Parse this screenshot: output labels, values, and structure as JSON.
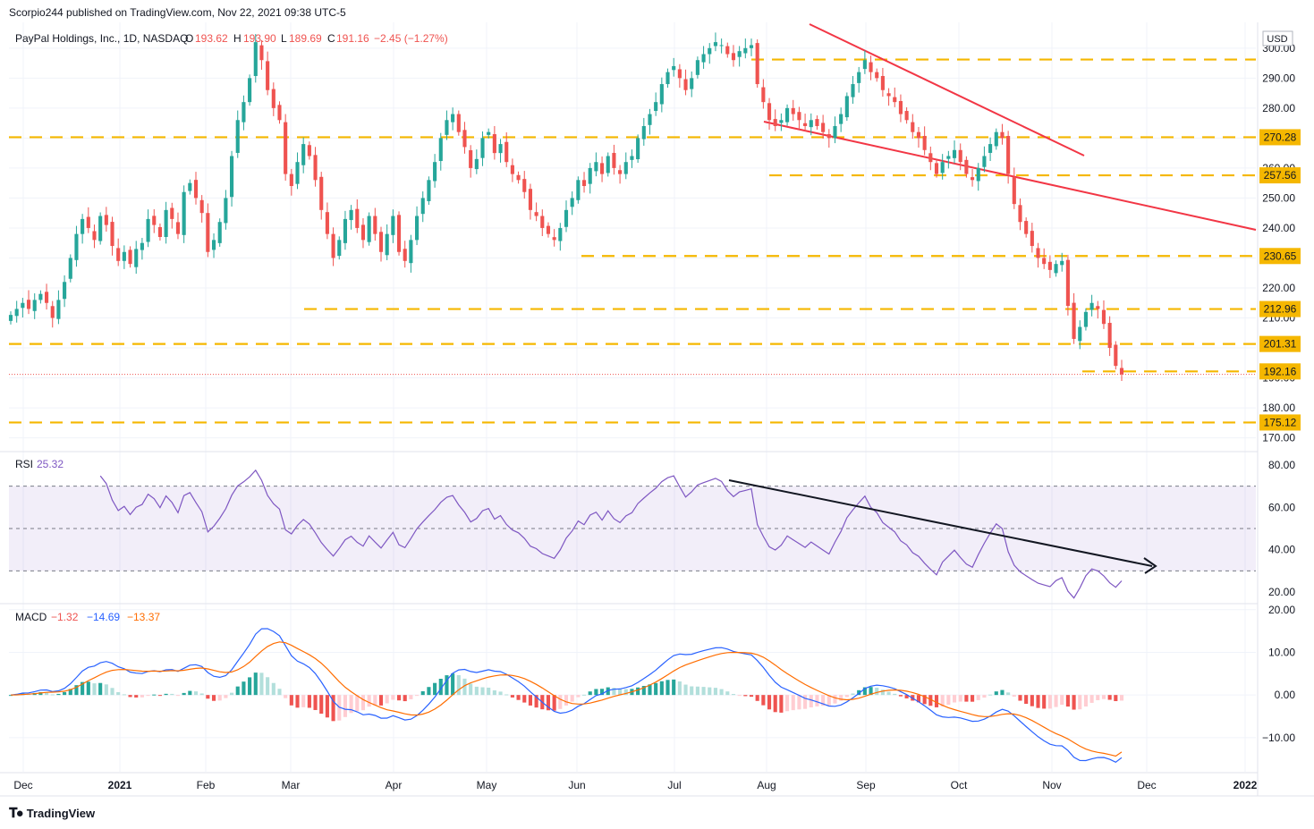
{
  "header": {
    "published": "Scorpio244 published on TradingView.com, Nov 22, 2021 09:38 UTC-5"
  },
  "legend": {
    "symbol": "PayPal Holdings, Inc., 1D, NASDAQ",
    "o_label": "O",
    "o_value": "193.62",
    "h_label": "H",
    "h_value": "193.90",
    "l_label": "L",
    "l_value": "189.69",
    "c_label": "C",
    "c_value": "191.16",
    "change": "−2.45 (−1.27%)"
  },
  "currency": "USD",
  "rsi_legend": {
    "label": "RSI",
    "value": "25.32"
  },
  "macd_legend": {
    "label": "MACD",
    "hist": "−1.32",
    "macd": "−14.69",
    "signal": "−13.37"
  },
  "footer": {
    "brand": "TradingView"
  },
  "colors": {
    "up": "#26a69a",
    "down": "#ef5350",
    "level": "#f5b700",
    "trend": "#f23645",
    "rsi": "#7e57c2",
    "macd": "#2962ff",
    "signal": "#ff6d00",
    "last_price": "#ef5350"
  },
  "chart_data": [
    {
      "type": "candlestick",
      "title": "PayPal Holdings, Inc., 1D, NASDAQ",
      "x_ticks": [
        "Dec",
        "2021",
        "Feb",
        "Mar",
        "Apr",
        "May",
        "Jun",
        "Jul",
        "Aug",
        "Sep",
        "Oct",
        "Nov",
        "Dec",
        "2022"
      ],
      "y_ticks": [
        170,
        180,
        190,
        200,
        210,
        220,
        230,
        240,
        250,
        260,
        270,
        280,
        290,
        300
      ],
      "y_tick_labels": [
        "170.00",
        "180.00",
        "190.00",
        "200.00",
        "210.00",
        "220.00",
        "230.00",
        "240.00",
        "250.00",
        "260.00",
        "270.00",
        "280.00",
        "290.00",
        "300.00"
      ],
      "ylim": [
        166,
        308
      ],
      "horizontal_levels": [
        296.2,
        270.28,
        257.56,
        230.65,
        212.96,
        201.31,
        192.16,
        175.12
      ],
      "level_labels": [
        "",
        "270.28",
        "257.56",
        "230.65",
        "212.96",
        "201.31",
        "192.16",
        "175.12"
      ],
      "last_price": 191.16,
      "closes": [
        211,
        213,
        215,
        213,
        216,
        218,
        215,
        210,
        216,
        222,
        230,
        238,
        243,
        240,
        236,
        244,
        241,
        234,
        229,
        232,
        228,
        233,
        235,
        243,
        241,
        237,
        246,
        243,
        238,
        252,
        255,
        250,
        245,
        232,
        236,
        242,
        250,
        264,
        276,
        282,
        290,
        302,
        296,
        286,
        280,
        276,
        258,
        254,
        262,
        268,
        264,
        256,
        246,
        238,
        230,
        236,
        243,
        246,
        240,
        236,
        244,
        238,
        232,
        238,
        244,
        232,
        229,
        236,
        244,
        250,
        256,
        262,
        270,
        276,
        278,
        272,
        267,
        260,
        263,
        270,
        272,
        265,
        268,
        262,
        258,
        256,
        252,
        246,
        244,
        240,
        238,
        236,
        240,
        246,
        250,
        256,
        254,
        260,
        262,
        258,
        264,
        260,
        258,
        262,
        264,
        270,
        274,
        278,
        282,
        288,
        292,
        294,
        290,
        286,
        290,
        296,
        298,
        300,
        302,
        301,
        298,
        296,
        299,
        300,
        301,
        288,
        282,
        276,
        274,
        276,
        280,
        278,
        276,
        274,
        276,
        274,
        272,
        270,
        274,
        278,
        284,
        288,
        292,
        296,
        292,
        290,
        286,
        284,
        282,
        278,
        276,
        272,
        270,
        266,
        262,
        258,
        262,
        264,
        266,
        262,
        258,
        256,
        260,
        264,
        268,
        272,
        270,
        258,
        248,
        242,
        238,
        234,
        230,
        228,
        226,
        228,
        229,
        214,
        203,
        207,
        212,
        215,
        213,
        208,
        200,
        194,
        191.16
      ],
      "rsi": {
        "label": "RSI",
        "value": 25.32,
        "period": 14,
        "ylim": [
          15,
          85
        ],
        "bands": [
          30,
          50,
          70
        ],
        "y_ticks": [
          "20.00",
          "40.00",
          "60.00",
          "80.00"
        ]
      },
      "macd": {
        "label": "MACD",
        "hist": -1.32,
        "macd": -14.69,
        "signal": -13.37,
        "ylim": [
          -18,
          21
        ],
        "y_ticks": [
          "−10.00",
          "0.00",
          "10.00",
          "20.00"
        ]
      }
    }
  ]
}
